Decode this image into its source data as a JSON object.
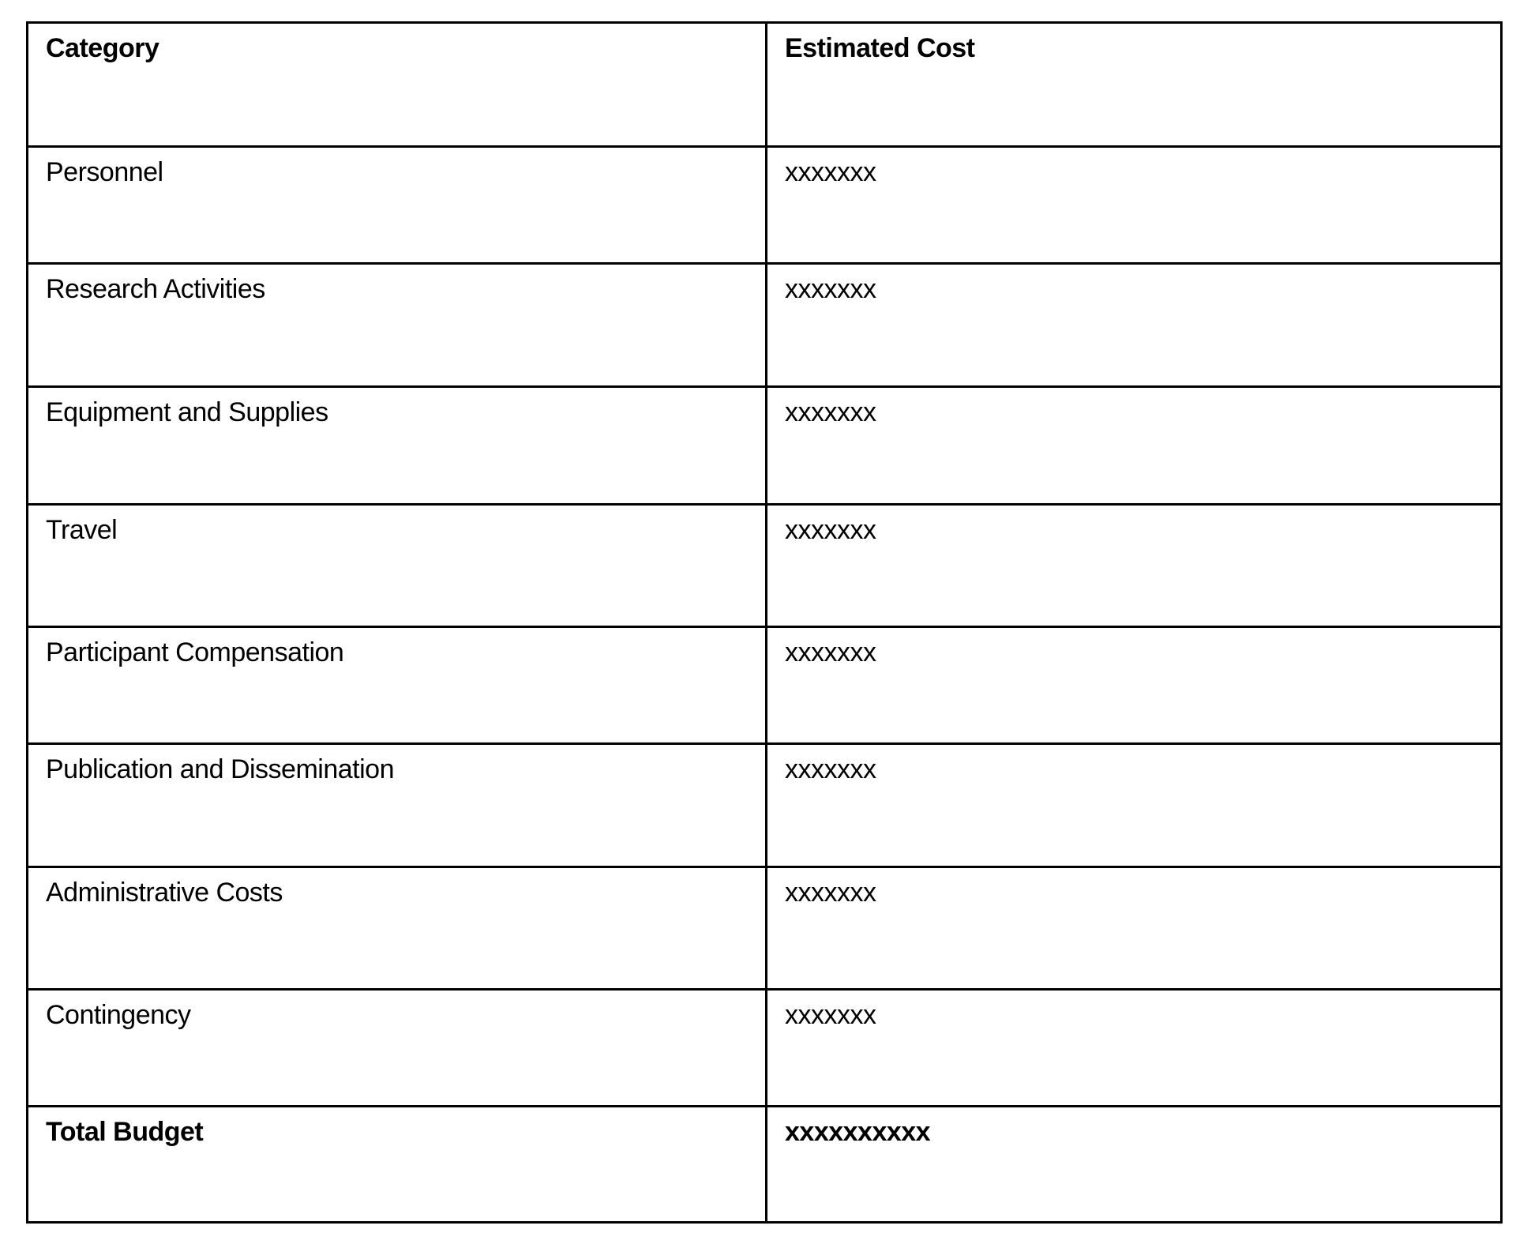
{
  "table": {
    "headers": [
      "Category",
      "Estimated Cost"
    ],
    "rows": [
      {
        "category": "Personnel",
        "cost": "xxxxxxx"
      },
      {
        "category": "Research Activities",
        "cost": "xxxxxxx"
      },
      {
        "category": "Equipment and Supplies",
        "cost": "xxxxxxx"
      },
      {
        "category": "Travel",
        "cost": "xxxxxxx"
      },
      {
        "category": "Participant Compensation",
        "cost": "xxxxxxx"
      },
      {
        "category": "Publication and Dissemination",
        "cost": "xxxxxxx"
      },
      {
        "category": "Administrative Costs",
        "cost": "xxxxxxx"
      },
      {
        "category": "Contingency",
        "cost": "xxxxxxx"
      }
    ],
    "total": {
      "category": "Total Budget",
      "cost": "xxxxxxxxxx"
    }
  }
}
